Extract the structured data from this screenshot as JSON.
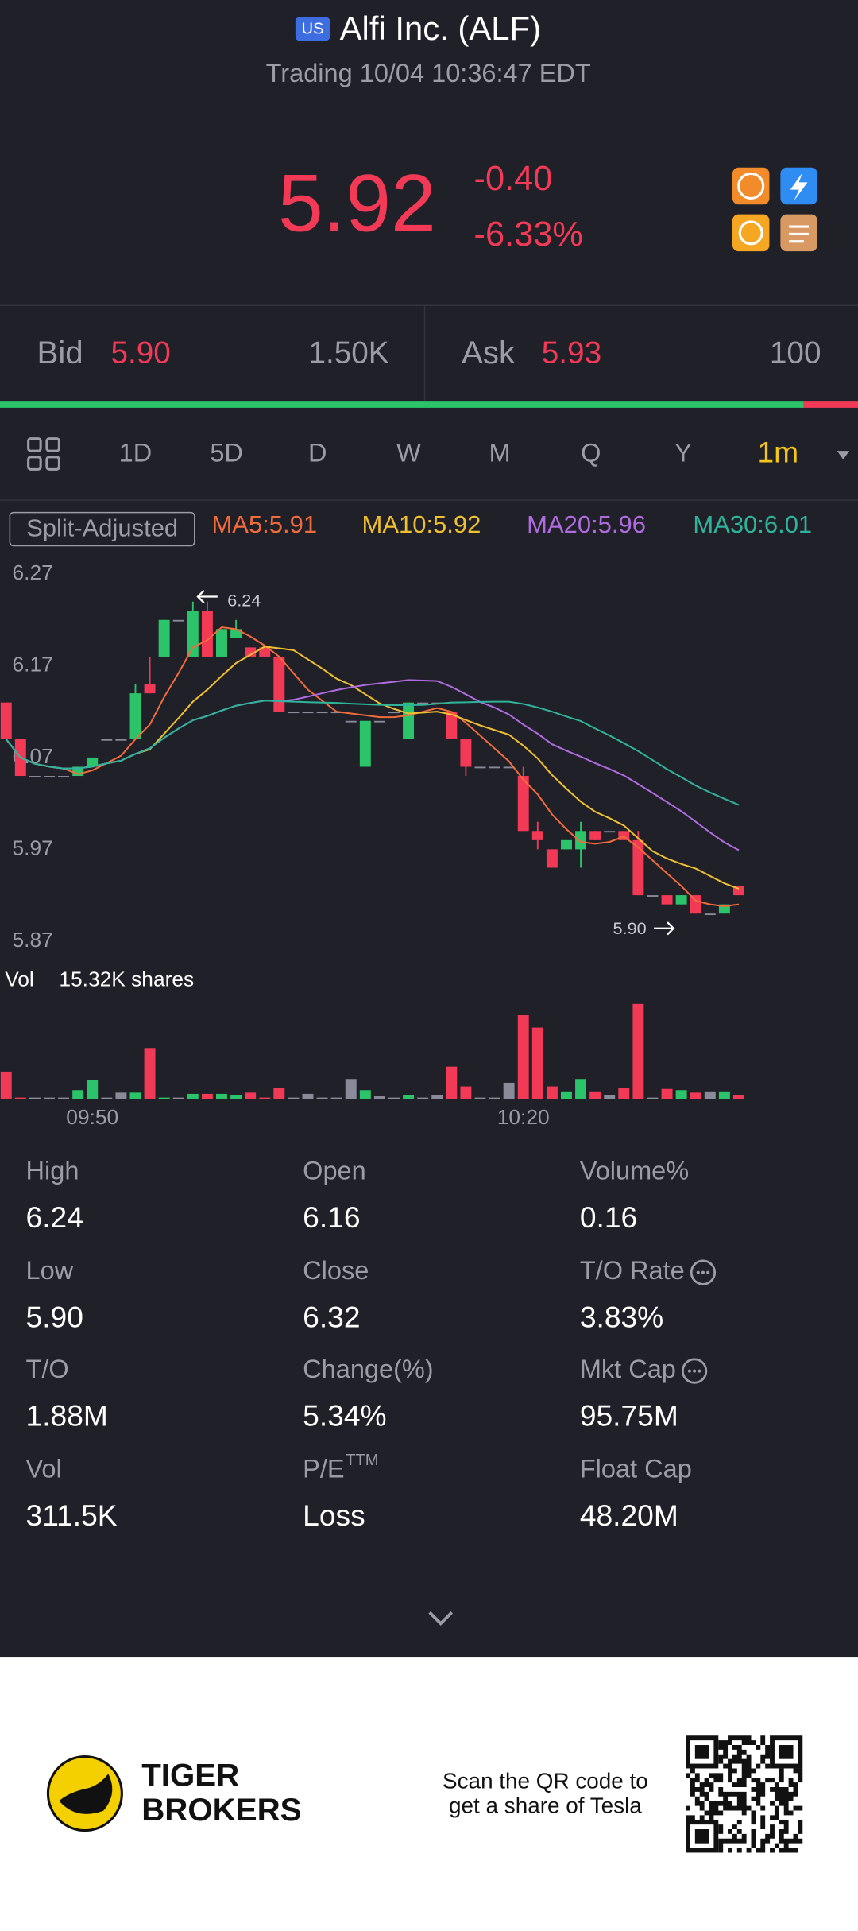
{
  "header": {
    "badge": "US",
    "title": "Alfi Inc. (ALF)",
    "status": "Trading 10/04 10:36:47 EDT"
  },
  "quote": {
    "price": "5.92",
    "change": "-0.40",
    "change_pct": "-6.33%"
  },
  "order_book": {
    "bid_label": "Bid",
    "bid": "5.90",
    "bid_size": "1.50K",
    "ask_label": "Ask",
    "ask": "5.93",
    "ask_size": "100"
  },
  "periods": [
    "1D",
    "5D",
    "D",
    "W",
    "M",
    "Q",
    "Y",
    "1m"
  ],
  "indicators": {
    "adjust": "Split-Adjusted",
    "ma": [
      {
        "label": "MA5:5.91",
        "color": "#f26b3a"
      },
      {
        "label": "MA10:5.92",
        "color": "#f0c030"
      },
      {
        "label": "MA20:5.96",
        "color": "#b06be0"
      },
      {
        "label": "MA30:6.01",
        "color": "#2fb39a"
      }
    ]
  },
  "chart_data": {
    "type": "candlestick",
    "up_color": "#2bc46b",
    "down_color": "#f23a57",
    "flat_color": "#8a8a99",
    "ylim": [
      5.87,
      6.27
    ],
    "yticks": [
      6.27,
      6.17,
      6.07,
      5.97,
      5.87
    ],
    "grid": false,
    "categories": [
      null,
      null,
      null,
      null,
      null,
      null,
      "09:50",
      null,
      null,
      null,
      null,
      null,
      null,
      null,
      null,
      null,
      null,
      null,
      null,
      null,
      null,
      null,
      null,
      null,
      null,
      null,
      null,
      null,
      null,
      null,
      null,
      null,
      null,
      null,
      null,
      null,
      "10:20",
      null,
      null,
      null,
      null,
      null,
      null,
      null,
      null,
      null,
      null,
      null,
      null,
      null,
      null,
      null
    ],
    "open": [
      6.13,
      6.09,
      6.05,
      6.05,
      6.05,
      6.05,
      6.06,
      6.09,
      6.09,
      6.09,
      6.15,
      6.18,
      6.22,
      6.18,
      6.23,
      6.18,
      6.2,
      6.19,
      6.19,
      6.18,
      6.12,
      6.12,
      6.12,
      6.12,
      6.11,
      6.06,
      6.11,
      6.12,
      6.09,
      6.13,
      6.13,
      6.12,
      6.09,
      6.06,
      6.06,
      6.06,
      6.05,
      5.99,
      5.97,
      5.97,
      5.97,
      5.99,
      5.99,
      5.99,
      5.98,
      5.92,
      5.92,
      5.91,
      5.92,
      5.9,
      5.9,
      5.93
    ],
    "high": [
      6.13,
      6.09,
      6.05,
      6.05,
      6.05,
      6.06,
      6.07,
      6.09,
      6.09,
      6.15,
      6.18,
      6.22,
      6.22,
      6.24,
      6.24,
      6.21,
      6.22,
      6.19,
      6.19,
      6.18,
      6.12,
      6.12,
      6.12,
      6.12,
      6.11,
      6.11,
      6.11,
      6.12,
      6.13,
      6.13,
      6.13,
      6.12,
      6.09,
      6.06,
      6.06,
      6.06,
      6.06,
      6.0,
      5.97,
      5.98,
      6.0,
      5.99,
      5.99,
      5.99,
      5.99,
      5.92,
      5.92,
      5.92,
      5.92,
      5.9,
      5.91,
      5.93
    ],
    "low": [
      6.09,
      6.05,
      6.05,
      6.05,
      6.05,
      6.05,
      6.06,
      6.09,
      6.09,
      6.09,
      6.14,
      6.18,
      6.22,
      6.18,
      6.18,
      6.18,
      6.2,
      6.18,
      6.18,
      6.12,
      6.12,
      6.12,
      6.12,
      6.12,
      6.11,
      6.06,
      6.11,
      6.12,
      6.09,
      6.13,
      6.13,
      6.09,
      6.05,
      6.06,
      6.06,
      6.06,
      5.99,
      5.97,
      5.95,
      5.97,
      5.95,
      5.98,
      5.99,
      5.98,
      5.92,
      5.92,
      5.91,
      5.91,
      5.9,
      5.9,
      5.9,
      5.92
    ],
    "close": [
      6.09,
      6.05,
      6.05,
      6.05,
      6.05,
      6.06,
      6.07,
      6.09,
      6.09,
      6.14,
      6.14,
      6.22,
      6.22,
      6.23,
      6.18,
      6.21,
      6.21,
      6.18,
      6.18,
      6.12,
      6.12,
      6.12,
      6.12,
      6.12,
      6.11,
      6.11,
      6.11,
      6.12,
      6.13,
      6.13,
      6.13,
      6.09,
      6.06,
      6.06,
      6.06,
      6.06,
      5.99,
      5.98,
      5.95,
      5.98,
      5.99,
      5.98,
      5.99,
      5.98,
      5.92,
      5.92,
      5.91,
      5.92,
      5.9,
      5.9,
      5.91,
      5.92
    ],
    "volume": [
      4400,
      0,
      0,
      0,
      0,
      1400,
      3000,
      0,
      1000,
      1000,
      8200,
      0,
      0,
      800,
      800,
      800,
      600,
      1000,
      0,
      1800,
      0,
      800,
      0,
      0,
      3200,
      1400,
      400,
      0,
      600,
      0,
      600,
      5200,
      2000,
      0,
      0,
      2600,
      13500,
      11500,
      2000,
      1200,
      3200,
      1200,
      600,
      1800,
      15320,
      0,
      1600,
      1400,
      1000,
      1200,
      1200,
      600
    ],
    "high_marker": "6.24",
    "low_marker": "5.90",
    "vol_label": "Vol",
    "vol_text": "15.32K shares"
  },
  "stats": [
    [
      {
        "label": "High",
        "value": "6.24"
      },
      {
        "label": "Open",
        "value": "6.16"
      },
      {
        "label": "Volume%",
        "value": "0.16"
      }
    ],
    [
      {
        "label": "Low",
        "value": "5.90"
      },
      {
        "label": "Close",
        "value": "6.32"
      },
      {
        "label": "T/O Rate",
        "value": "3.83%"
      }
    ],
    [
      {
        "label": "T/O",
        "value": "1.88M"
      },
      {
        "label": "Change(%)",
        "value": "5.34%"
      },
      {
        "label": "Mkt Cap",
        "value": "95.75M"
      }
    ],
    [
      {
        "label": "Vol",
        "value": "311.5K"
      },
      {
        "label": "P/E",
        "sup": "TTM",
        "value": "Loss"
      },
      {
        "label": "Float Cap",
        "value": "48.20M"
      }
    ]
  ],
  "footer": {
    "brand": [
      "TIGER",
      "BROKERS"
    ],
    "promo": [
      "Scan the QR code to",
      "get a share of Tesla"
    ]
  }
}
